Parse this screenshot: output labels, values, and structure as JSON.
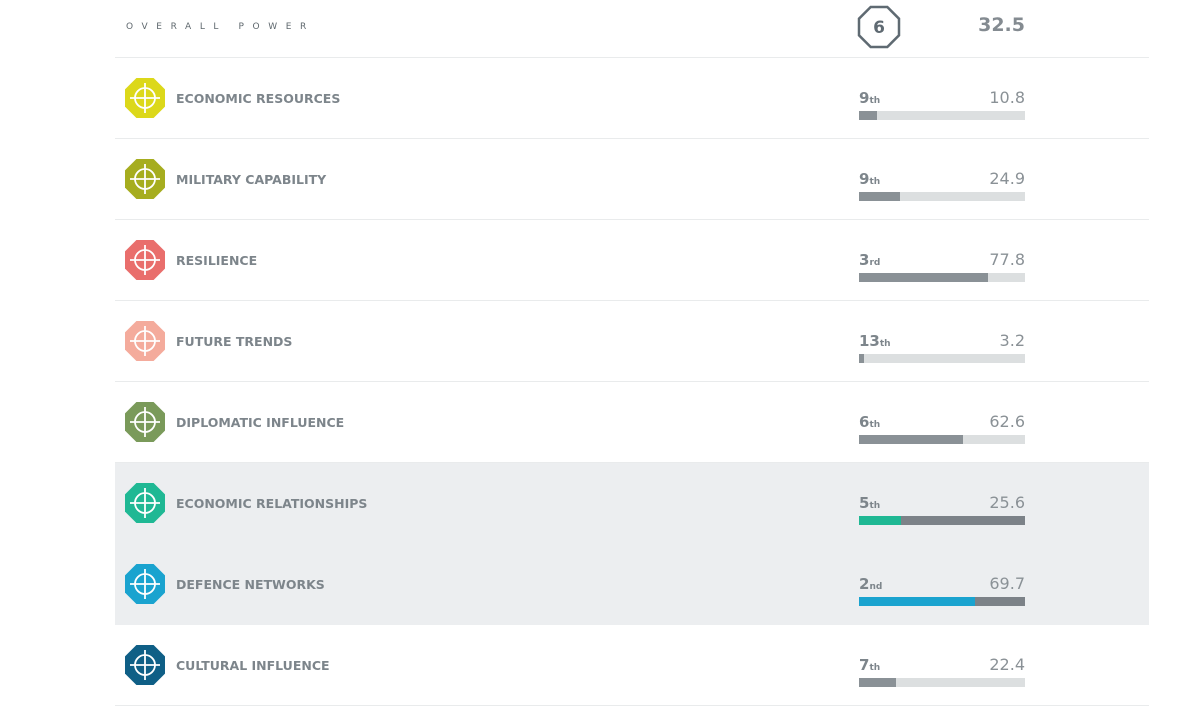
{
  "header": {
    "title": "OVERALL POWER",
    "rank": 6,
    "score": 32.5
  },
  "rows": [
    {
      "name": "ECONOMIC RESOURCES",
      "rank": 9,
      "rank_suffix": "th",
      "score": 10.8,
      "color": "#dcd81a",
      "highlighted": false
    },
    {
      "name": "MILITARY CAPABILITY",
      "rank": 9,
      "rank_suffix": "th",
      "score": 24.9,
      "color": "#a6ad1f",
      "highlighted": false
    },
    {
      "name": "RESILIENCE",
      "rank": 3,
      "rank_suffix": "rd",
      "score": 77.8,
      "color": "#e96e6c",
      "highlighted": false
    },
    {
      "name": "FUTURE TRENDS",
      "rank": 13,
      "rank_suffix": "th",
      "score": 3.2,
      "color": "#f4ab9c",
      "highlighted": false
    },
    {
      "name": "DIPLOMATIC INFLUENCE",
      "rank": 6,
      "rank_suffix": "th",
      "score": 62.6,
      "color": "#7a9a5a",
      "highlighted": false
    },
    {
      "name": "ECONOMIC RELATIONSHIPS",
      "rank": 5,
      "rank_suffix": "th",
      "score": 25.6,
      "color": "#1fb894",
      "highlighted": true
    },
    {
      "name": "DEFENCE NETWORKS",
      "rank": 2,
      "rank_suffix": "nd",
      "score": 69.7,
      "color": "#1aa3cf",
      "highlighted": true
    },
    {
      "name": "CULTURAL INFLUENCE",
      "rank": 7,
      "rank_suffix": "th",
      "score": 22.4,
      "color": "#0f5f86",
      "highlighted": false
    }
  ]
}
